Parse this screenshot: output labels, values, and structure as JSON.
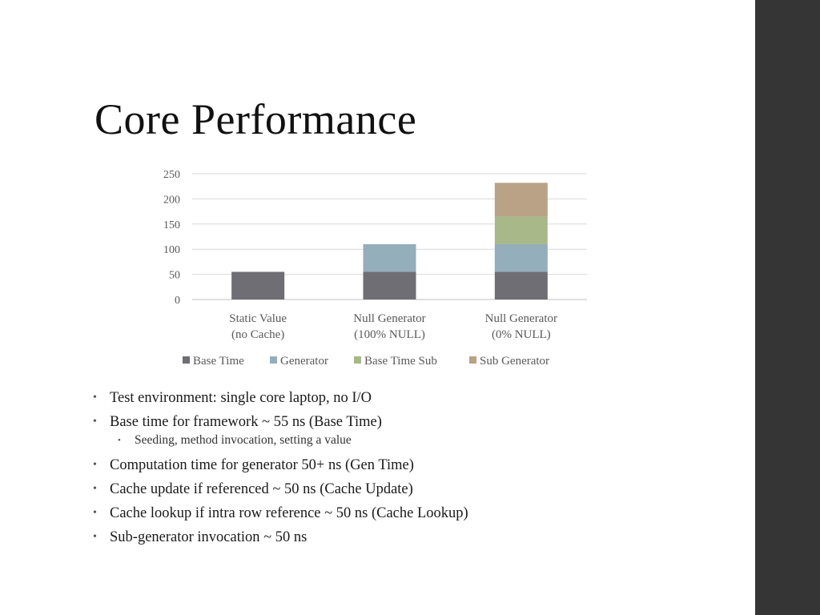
{
  "slide": {
    "title": "Core Performance",
    "bullets": [
      "Test environment: single core laptop, no I/O",
      "Base time for framework ~ 55 ns (Base Time)"
    ],
    "sub_bullets": [
      "Seeding, method invocation, setting a value"
    ],
    "bullets_after": [
      "Computation time for generator 50+ ns (Gen Time)",
      "Cache update if referenced ~ 50 ns (Cache Update)",
      "Cache lookup if intra row reference ~ 50 ns (Cache Lookup)",
      "Sub-generator invocation ~ 50 ns"
    ],
    "bullet_glyph": "•",
    "colors": {
      "sidebar": "#353536"
    }
  },
  "chart_data": {
    "type": "bar",
    "stacked": true,
    "categories": [
      [
        "Static Value",
        "(no Cache)"
      ],
      [
        "Null Generator",
        "(100% NULL)"
      ],
      [
        "Null Generator",
        "(0% NULL)"
      ]
    ],
    "series": [
      {
        "name": "Base Time",
        "values": [
          55,
          55,
          55
        ],
        "color": "#6f6e74"
      },
      {
        "name": "Generator",
        "values": [
          0,
          55,
          55
        ],
        "color": "#94aebb"
      },
      {
        "name": "Base Time Sub",
        "values": [
          0,
          0,
          55
        ],
        "color": "#a8b888"
      },
      {
        "name": "Sub Generator",
        "values": [
          0,
          0,
          67
        ],
        "color": "#b9a286"
      }
    ],
    "yticks": [
      0,
      50,
      100,
      150,
      200,
      250
    ],
    "ylim": [
      0,
      250
    ],
    "grid": true,
    "legend": "bottom"
  }
}
